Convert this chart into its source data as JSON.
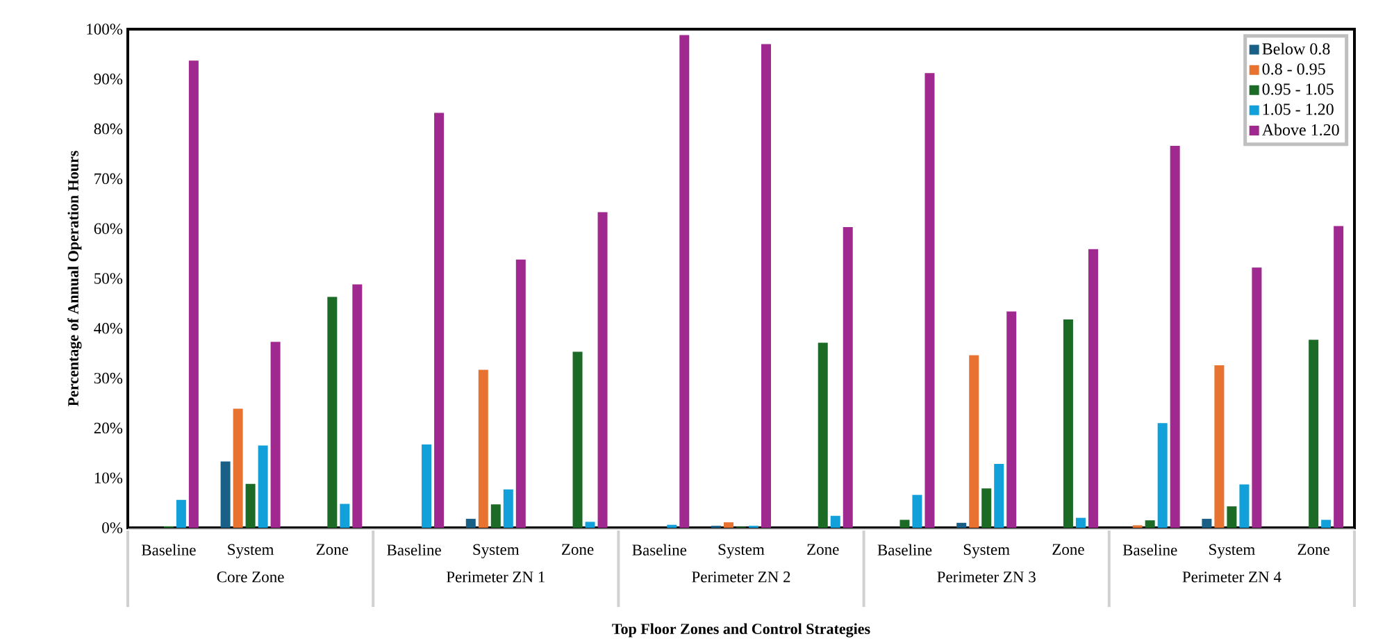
{
  "chart_data": {
    "type": "bar",
    "xlabel": "Top Floor Zones and Control Strategies",
    "ylabel": "Percentage of Annual Operation Hours",
    "categories": [
      "Baseline",
      "System",
      "Zone",
      "Baseline",
      "System",
      "Zone",
      "Baseline",
      "System",
      "Zone",
      "Baseline",
      "System",
      "Zone",
      "Baseline",
      "System",
      "Zone"
    ],
    "annotations": [
      "Core Zone",
      "Perimeter ZN 1",
      "Perimeter ZN 2",
      "Perimeter ZN 3",
      "Perimeter ZN 4"
    ],
    "series": [
      {
        "name": "Below 0.8",
        "color": "#1a5f85",
        "values": [
          0,
          13.3,
          0,
          0,
          1.8,
          0,
          0,
          0.4,
          0,
          0,
          1.0,
          0,
          0,
          1.8,
          0
        ]
      },
      {
        "name": "0.8 - 0.95",
        "color": "#e8722f",
        "values": [
          0,
          23.9,
          0,
          0,
          31.7,
          0,
          0,
          1.1,
          0,
          0,
          34.6,
          0,
          0.5,
          32.6,
          0
        ]
      },
      {
        "name": "0.95 - 1.05",
        "color": "#1b6b26",
        "values": [
          0.3,
          8.8,
          46.3,
          0,
          4.7,
          35.3,
          0,
          0.2,
          37.1,
          1.6,
          7.9,
          41.8,
          1.5,
          4.3,
          37.7
        ]
      },
      {
        "name": "1.05 - 1.20",
        "color": "#11a0d9",
        "values": [
          5.6,
          16.5,
          4.8,
          16.7,
          7.7,
          1.2,
          0.6,
          0.4,
          2.4,
          6.6,
          12.8,
          2.0,
          21.0,
          8.7,
          1.6
        ]
      },
      {
        "name": "Above 1.20",
        "color": "#a0298f",
        "values": [
          93.7,
          37.3,
          48.8,
          83.2,
          53.8,
          63.3,
          98.8,
          97.0,
          60.3,
          91.2,
          43.4,
          55.9,
          76.6,
          52.2,
          60.5
        ]
      }
    ],
    "ylim": [
      0,
      100
    ],
    "yticks": [
      {
        "value": 0,
        "label": "0%"
      },
      {
        "value": 10,
        "label": "10%"
      },
      {
        "value": 20,
        "label": "20%"
      },
      {
        "value": 30,
        "label": "30%"
      },
      {
        "value": 40,
        "label": "40%"
      },
      {
        "value": 50,
        "label": "50%"
      },
      {
        "value": 60,
        "label": "60%"
      },
      {
        "value": 70,
        "label": "70%"
      },
      {
        "value": 80,
        "label": "80%"
      },
      {
        "value": 90,
        "label": "90%"
      },
      {
        "value": 100,
        "label": "100%"
      }
    ],
    "legend": "top right"
  }
}
